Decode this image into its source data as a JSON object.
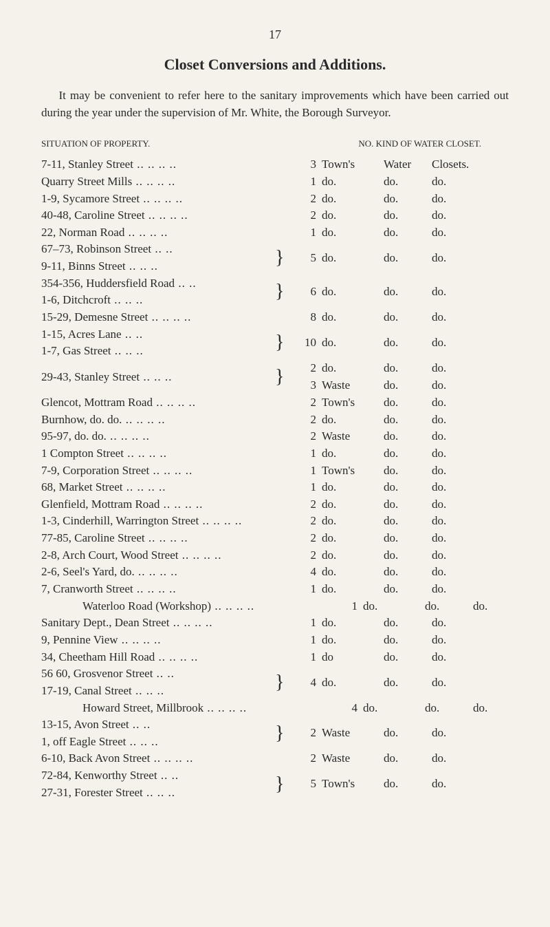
{
  "page_number": "17",
  "title": "Closet Conversions and Additions.",
  "intro": "It may be convenient to refer here to the sanitary improvements which have been carried out during the year under the supervision of Mr. White, the Borough Surveyor.",
  "headers": {
    "left": "SITUATION OF PROPERTY.",
    "right": "NO. KIND OF WATER CLOSET."
  },
  "rows": [
    {
      "prop": "7-11, Stanley Street",
      "n": "3",
      "k1": "Town's",
      "k2": "Water",
      "k3": "Closets."
    },
    {
      "prop": "Quarry Street Mills",
      "n": "1",
      "k1": "do.",
      "k2": "do.",
      "k3": "do."
    },
    {
      "prop": "1-9, Sycamore Street",
      "n": "2",
      "k1": "do.",
      "k2": "do.",
      "k3": "do."
    },
    {
      "prop": "40-48, Caroline Street",
      "n": "2",
      "k1": "do.",
      "k2": "do.",
      "k3": "do."
    },
    {
      "prop": "22, Norman Road",
      "n": "1",
      "k1": "do.",
      "k2": "do.",
      "k3": "do."
    }
  ],
  "brace1": {
    "p1": "67–73, Robinson Street",
    "p2": "9-11, Binns Street",
    "n": "5",
    "k1": "do.",
    "k2": "do.",
    "k3": "do."
  },
  "brace2": {
    "p1": "354-356, Huddersfield Road",
    "p2": "1-6, Ditchcroft",
    "n": "6",
    "k1": "do.",
    "k2": "do.",
    "k3": "do."
  },
  "row_demesne": {
    "prop": "15-29, Demesne Street",
    "n": "8",
    "k1": "do.",
    "k2": "do.",
    "k3": "do."
  },
  "brace3": {
    "p1": "1-15, Acres Lane",
    "p2": "1-7, Gas Street",
    "n": "10",
    "k1": "do.",
    "k2": "do.",
    "k3": "do."
  },
  "brace4": {
    "p1": "29-43, Stanley Street",
    "n1": "2",
    "k1a": "do.",
    "k2a": "do.",
    "k3a": "do.",
    "n2": "3",
    "k1b": "Waste",
    "k2b": "do.",
    "k3b": "do."
  },
  "rows2": [
    {
      "prop": "Glencot, Mottram Road",
      "n": "2",
      "k1": "Town's",
      "k2": "do.",
      "k3": "do."
    },
    {
      "prop": "Burnhow,    do.        do.",
      "n": "2",
      "k1": "do.",
      "k2": "do.",
      "k3": "do."
    },
    {
      "prop": "95-97,        do.        do.",
      "n": "2",
      "k1": "Waste",
      "k2": "do.",
      "k3": "do."
    },
    {
      "prop": "1 Compton Street",
      "n": "1",
      "k1": "do.",
      "k2": "do.",
      "k3": "do."
    },
    {
      "prop": "7-9, Corporation Street",
      "n": "1",
      "k1": "Town's",
      "k2": "do.",
      "k3": "do."
    },
    {
      "prop": "68, Market Street",
      "n": "1",
      "k1": "do.",
      "k2": "do.",
      "k3": "do."
    },
    {
      "prop": "Glenfield, Mottram Road",
      "n": "2",
      "k1": "do.",
      "k2": "do.",
      "k3": "do."
    },
    {
      "prop": "1-3, Cinderhill, Warrington Street",
      "n": "2",
      "k1": "do.",
      "k2": "do.",
      "k3": "do."
    },
    {
      "prop": "77-85, Caroline Street",
      "n": "2",
      "k1": "do.",
      "k2": "do.",
      "k3": "do."
    },
    {
      "prop": "2-8, Arch Court, Wood Street",
      "n": "2",
      "k1": "do.",
      "k2": "do.",
      "k3": "do."
    },
    {
      "prop": "2-6, Seel's Yard,        do.",
      "n": "4",
      "k1": "do.",
      "k2": "do.",
      "k3": "do."
    },
    {
      "prop": "7, Cranworth Street",
      "n": "1",
      "k1": "do.",
      "k2": "do.",
      "k3": "do."
    },
    {
      "prop": "Waterloo Road (Workshop)",
      "indent": true,
      "n": "1",
      "k1": "do.",
      "k2": "do.",
      "k3": "do."
    },
    {
      "prop": "Sanitary Dept., Dean Street",
      "n": "1",
      "k1": "do.",
      "k2": "do.",
      "k3": "do."
    },
    {
      "prop": "9, Pennine View",
      "n": "1",
      "k1": "do.",
      "k2": "do.",
      "k3": "do."
    },
    {
      "prop": "34, Cheetham Hill Road",
      "n": "1",
      "k1": "do",
      "k2": "do.",
      "k3": "do."
    }
  ],
  "brace5": {
    "p1": "56 60, Grosvenor Street",
    "p2": "17-19, Canal Street",
    "n": "4",
    "k1": "do.",
    "k2": "do.",
    "k3": "do."
  },
  "row_howard": {
    "prop": "Howard Street, Millbrook",
    "indent": true,
    "n": "4",
    "k1": "do.",
    "k2": "do.",
    "k3": "do."
  },
  "brace6": {
    "p1": "13-15, Avon Street",
    "p2": "1, off Eagle Street",
    "n": "2",
    "k1": "Waste",
    "k2": "do.",
    "k3": "do."
  },
  "row_back": {
    "prop": "6-10, Back Avon Street",
    "n": "2",
    "k1": "Waste",
    "k2": "do.",
    "k3": "do."
  },
  "brace7": {
    "p1": "72-84, Kenworthy Street",
    "p2": "27-31, Forester Street",
    "n": "5",
    "k1": "Town's",
    "k2": "do.",
    "k3": "do."
  }
}
